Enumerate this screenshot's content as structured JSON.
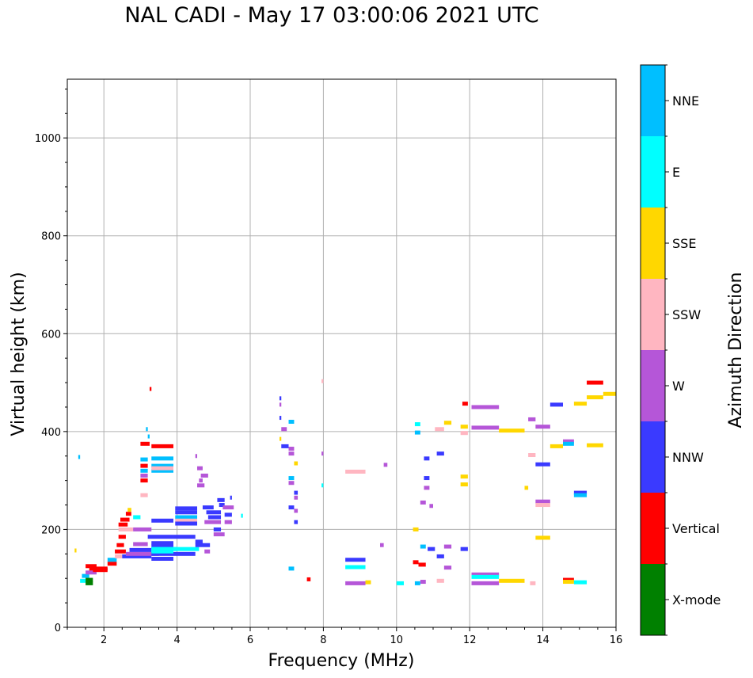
{
  "chart_data": {
    "type": "scatter",
    "title": "NAL CADI - May 17 03:00:06 2021 UTC",
    "xlabel": "Frequency (MHz)",
    "ylabel": "Virtual height (km)",
    "xlim": [
      1,
      16
    ],
    "ylim": [
      0,
      1120
    ],
    "xticks": [
      2,
      4,
      6,
      8,
      10,
      12,
      14,
      16
    ],
    "yticks": [
      0,
      200,
      400,
      600,
      800,
      1000
    ],
    "grid": true,
    "colorbar": {
      "label": "Azimuth Direction",
      "categories": [
        {
          "name": "X-mode",
          "color": "#008000"
        },
        {
          "name": "Vertical",
          "color": "#ff0000"
        },
        {
          "name": "NNW",
          "color": "#3a3aff"
        },
        {
          "name": "W",
          "color": "#b556d8"
        },
        {
          "name": "SSW",
          "color": "#ffb6c1"
        },
        {
          "name": "SSE",
          "color": "#ffd700"
        },
        {
          "name": "E",
          "color": "#00ffff"
        },
        {
          "name": "NNE",
          "color": "#00bfff"
        }
      ]
    },
    "segments": [
      {
        "f": 1.3,
        "f2": 1.35,
        "h": 348,
        "c": "NNE"
      },
      {
        "f": 1.2,
        "f2": 1.25,
        "h": 157,
        "c": "SSE"
      },
      {
        "f": 1.35,
        "f2": 1.5,
        "h": 95,
        "c": "E"
      },
      {
        "f": 1.4,
        "f2": 1.6,
        "h": 105,
        "c": "NNE"
      },
      {
        "f": 1.5,
        "f2": 1.7,
        "h": 97,
        "c": "X-mode"
      },
      {
        "f": 1.5,
        "f2": 1.7,
        "h": 90,
        "c": "X-mode"
      },
      {
        "f": 1.5,
        "f2": 1.8,
        "h": 112,
        "c": "W"
      },
      {
        "f": 1.5,
        "f2": 1.8,
        "h": 125,
        "c": "Vertical"
      },
      {
        "f": 1.6,
        "f2": 2.1,
        "h": 120,
        "c": "Vertical"
      },
      {
        "f": 1.7,
        "f2": 2.1,
        "h": 117,
        "c": "Vertical"
      },
      {
        "f": 2.1,
        "f2": 2.35,
        "h": 130,
        "c": "Vertical"
      },
      {
        "f": 2.1,
        "f2": 2.35,
        "h": 138,
        "c": "NNE"
      },
      {
        "f": 2.3,
        "f2": 2.5,
        "h": 145,
        "c": "SSW"
      },
      {
        "f": 2.3,
        "f2": 2.6,
        "h": 155,
        "c": "Vertical"
      },
      {
        "f": 2.35,
        "f2": 2.55,
        "h": 168,
        "c": "Vertical"
      },
      {
        "f": 2.4,
        "f2": 2.6,
        "h": 185,
        "c": "Vertical"
      },
      {
        "f": 2.4,
        "f2": 2.8,
        "h": 200,
        "c": "SSW"
      },
      {
        "f": 2.4,
        "f2": 2.65,
        "h": 210,
        "c": "Vertical"
      },
      {
        "f": 2.45,
        "f2": 2.7,
        "h": 220,
        "c": "Vertical"
      },
      {
        "f": 2.6,
        "f2": 2.75,
        "h": 232,
        "c": "Vertical"
      },
      {
        "f": 2.65,
        "f2": 2.75,
        "h": 240,
        "c": "SSE"
      },
      {
        "f": 2.5,
        "f2": 3.3,
        "h": 145,
        "c": "NNW"
      },
      {
        "f": 2.6,
        "f2": 3.5,
        "h": 150,
        "c": "W"
      },
      {
        "f": 2.7,
        "f2": 3.3,
        "h": 158,
        "c": "NNW"
      },
      {
        "f": 2.8,
        "f2": 3.2,
        "h": 170,
        "c": "W"
      },
      {
        "f": 2.8,
        "f2": 3.3,
        "h": 200,
        "c": "W"
      },
      {
        "f": 2.8,
        "f2": 3.0,
        "h": 225,
        "c": "E"
      },
      {
        "f": 3.0,
        "f2": 3.2,
        "h": 270,
        "c": "SSW"
      },
      {
        "f": 3.0,
        "f2": 3.2,
        "h": 300,
        "c": "Vertical"
      },
      {
        "f": 3.0,
        "f2": 3.2,
        "h": 310,
        "c": "W"
      },
      {
        "f": 3.0,
        "f2": 3.2,
        "h": 320,
        "c": "NNE"
      },
      {
        "f": 3.0,
        "f2": 3.2,
        "h": 330,
        "c": "Vertical"
      },
      {
        "f": 3.0,
        "f2": 3.2,
        "h": 343,
        "c": "NNE"
      },
      {
        "f": 3.0,
        "f2": 3.25,
        "h": 375,
        "c": "Vertical"
      },
      {
        "f": 3.2,
        "f2": 3.25,
        "h": 390,
        "c": "NNE"
      },
      {
        "f": 3.15,
        "f2": 3.2,
        "h": 405,
        "c": "NNE"
      },
      {
        "f": 3.25,
        "f2": 3.3,
        "h": 487,
        "c": "Vertical"
      },
      {
        "f": 3.3,
        "f2": 3.9,
        "h": 370,
        "c": "Vertical"
      },
      {
        "f": 3.3,
        "f2": 3.9,
        "h": 345,
        "c": "NNE"
      },
      {
        "f": 3.3,
        "f2": 3.9,
        "h": 330,
        "c": "NNE"
      },
      {
        "f": 3.3,
        "f2": 3.9,
        "h": 320,
        "c": "NNE"
      },
      {
        "f": 3.3,
        "f2": 3.9,
        "h": 325,
        "c": "SSW"
      },
      {
        "f": 3.3,
        "f2": 3.9,
        "h": 218,
        "c": "NNW"
      },
      {
        "f": 3.2,
        "f2": 3.9,
        "h": 185,
        "c": "NNW"
      },
      {
        "f": 3.3,
        "f2": 3.9,
        "h": 165,
        "c": "NNW"
      },
      {
        "f": 3.3,
        "f2": 3.9,
        "h": 150,
        "c": "NNW"
      },
      {
        "f": 3.3,
        "f2": 3.9,
        "h": 140,
        "c": "NNW"
      },
      {
        "f": 3.3,
        "f2": 3.9,
        "h": 155,
        "c": "E"
      },
      {
        "f": 3.3,
        "f2": 3.9,
        "h": 172,
        "c": "NNW"
      },
      {
        "f": 3.3,
        "f2": 4.0,
        "h": 160,
        "c": "NNE"
      },
      {
        "f": 3.3,
        "f2": 4.6,
        "h": 160,
        "c": "E"
      },
      {
        "f": 3.9,
        "f2": 4.5,
        "h": 150,
        "c": "NNW"
      },
      {
        "f": 3.95,
        "f2": 4.55,
        "h": 243,
        "c": "NNW"
      },
      {
        "f": 3.95,
        "f2": 4.55,
        "h": 235,
        "c": "NNW"
      },
      {
        "f": 3.95,
        "f2": 4.55,
        "h": 225,
        "c": "NNE"
      },
      {
        "f": 3.95,
        "f2": 4.55,
        "h": 218,
        "c": "SSW"
      },
      {
        "f": 3.95,
        "f2": 4.55,
        "h": 212,
        "c": "NNW"
      },
      {
        "f": 3.9,
        "f2": 4.5,
        "h": 185,
        "c": "NNW"
      },
      {
        "f": 4.5,
        "f2": 4.55,
        "h": 350,
        "c": "W"
      },
      {
        "f": 4.55,
        "f2": 4.7,
        "h": 325,
        "c": "W"
      },
      {
        "f": 4.6,
        "f2": 4.7,
        "h": 300,
        "c": "W"
      },
      {
        "f": 4.65,
        "f2": 4.85,
        "h": 310,
        "c": "W"
      },
      {
        "f": 4.55,
        "f2": 4.75,
        "h": 290,
        "c": "W"
      },
      {
        "f": 4.5,
        "f2": 4.7,
        "h": 175,
        "c": "NNW"
      },
      {
        "f": 4.5,
        "f2": 4.9,
        "h": 168,
        "c": "NNW"
      },
      {
        "f": 4.75,
        "f2": 4.9,
        "h": 155,
        "c": "W"
      },
      {
        "f": 4.7,
        "f2": 5.0,
        "h": 245,
        "c": "NNW"
      },
      {
        "f": 4.75,
        "f2": 5.2,
        "h": 215,
        "c": "W"
      },
      {
        "f": 4.8,
        "f2": 5.2,
        "h": 235,
        "c": "NNW"
      },
      {
        "f": 4.85,
        "f2": 5.2,
        "h": 225,
        "c": "NNW"
      },
      {
        "f": 5.0,
        "f2": 5.2,
        "h": 200,
        "c": "NNW"
      },
      {
        "f": 5.0,
        "f2": 5.3,
        "h": 190,
        "c": "W"
      },
      {
        "f": 5.1,
        "f2": 5.3,
        "h": 260,
        "c": "NNW"
      },
      {
        "f": 5.15,
        "f2": 5.3,
        "h": 250,
        "c": "NNW"
      },
      {
        "f": 5.25,
        "f2": 5.55,
        "h": 245,
        "c": "W"
      },
      {
        "f": 5.3,
        "f2": 5.5,
        "h": 230,
        "c": "NNW"
      },
      {
        "f": 5.3,
        "f2": 5.5,
        "h": 215,
        "c": "W"
      },
      {
        "f": 5.45,
        "f2": 5.5,
        "h": 265,
        "c": "NNW"
      },
      {
        "f": 5.75,
        "f2": 5.8,
        "h": 228,
        "c": "E"
      },
      {
        "f": 6.8,
        "f2": 6.85,
        "h": 468,
        "c": "NNW"
      },
      {
        "f": 6.8,
        "f2": 6.85,
        "h": 455,
        "c": "W"
      },
      {
        "f": 6.8,
        "f2": 6.85,
        "h": 428,
        "c": "NNW"
      },
      {
        "f": 6.8,
        "f2": 6.85,
        "h": 385,
        "c": "SSE"
      },
      {
        "f": 6.85,
        "f2": 7.0,
        "h": 405,
        "c": "W"
      },
      {
        "f": 6.85,
        "f2": 7.05,
        "h": 370,
        "c": "NNW"
      },
      {
        "f": 7.05,
        "f2": 7.2,
        "h": 420,
        "c": "NNE"
      },
      {
        "f": 7.05,
        "f2": 7.2,
        "h": 365,
        "c": "W"
      },
      {
        "f": 7.05,
        "f2": 7.2,
        "h": 355,
        "c": "W"
      },
      {
        "f": 7.05,
        "f2": 7.2,
        "h": 305,
        "c": "NNE"
      },
      {
        "f": 7.05,
        "f2": 7.2,
        "h": 295,
        "c": "W"
      },
      {
        "f": 7.2,
        "f2": 7.3,
        "h": 275,
        "c": "NNW"
      },
      {
        "f": 7.2,
        "f2": 7.3,
        "h": 265,
        "c": "W"
      },
      {
        "f": 7.05,
        "f2": 7.2,
        "h": 245,
        "c": "NNW"
      },
      {
        "f": 7.2,
        "f2": 7.3,
        "h": 238,
        "c": "W"
      },
      {
        "f": 7.2,
        "f2": 7.3,
        "h": 215,
        "c": "NNW"
      },
      {
        "f": 7.2,
        "f2": 7.3,
        "h": 335,
        "c": "SSE"
      },
      {
        "f": 7.05,
        "f2": 7.2,
        "h": 120,
        "c": "NNE"
      },
      {
        "f": 7.55,
        "f2": 7.65,
        "h": 98,
        "c": "Vertical"
      },
      {
        "f": 7.95,
        "f2": 8.0,
        "h": 503,
        "c": "SSW"
      },
      {
        "f": 7.95,
        "f2": 8.0,
        "h": 355,
        "c": "W"
      },
      {
        "f": 7.95,
        "f2": 8.0,
        "h": 290,
        "c": "E"
      },
      {
        "f": 8.6,
        "f2": 9.15,
        "h": 318,
        "c": "SSW"
      },
      {
        "f": 8.6,
        "f2": 9.15,
        "h": 138,
        "c": "NNW"
      },
      {
        "f": 8.6,
        "f2": 9.15,
        "h": 123,
        "c": "E"
      },
      {
        "f": 8.6,
        "f2": 9.15,
        "h": 90,
        "c": "W"
      },
      {
        "f": 9.15,
        "f2": 9.3,
        "h": 92,
        "c": "SSE"
      },
      {
        "f": 9.55,
        "f2": 9.65,
        "h": 168,
        "c": "W"
      },
      {
        "f": 9.65,
        "f2": 9.75,
        "h": 332,
        "c": "W"
      },
      {
        "f": 10.0,
        "f2": 10.2,
        "h": 90,
        "c": "E"
      },
      {
        "f": 10.5,
        "f2": 10.65,
        "h": 415,
        "c": "E"
      },
      {
        "f": 10.5,
        "f2": 10.65,
        "h": 398,
        "c": "NNE"
      },
      {
        "f": 10.45,
        "f2": 10.6,
        "h": 200,
        "c": "SSE"
      },
      {
        "f": 10.45,
        "f2": 10.6,
        "h": 133,
        "c": "Vertical"
      },
      {
        "f": 10.5,
        "f2": 10.65,
        "h": 90,
        "c": "NNE"
      },
      {
        "f": 10.65,
        "f2": 10.8,
        "h": 255,
        "c": "W"
      },
      {
        "f": 10.65,
        "f2": 10.8,
        "h": 165,
        "c": "NNE"
      },
      {
        "f": 10.6,
        "f2": 10.8,
        "h": 128,
        "c": "Vertical"
      },
      {
        "f": 10.65,
        "f2": 10.8,
        "h": 93,
        "c": "W"
      },
      {
        "f": 10.75,
        "f2": 10.9,
        "h": 345,
        "c": "NNW"
      },
      {
        "f": 10.75,
        "f2": 10.9,
        "h": 305,
        "c": "NNW"
      },
      {
        "f": 10.75,
        "f2": 10.9,
        "h": 285,
        "c": "W"
      },
      {
        "f": 10.85,
        "f2": 11.05,
        "h": 160,
        "c": "NNW"
      },
      {
        "f": 10.9,
        "f2": 11.0,
        "h": 248,
        "c": "W"
      },
      {
        "f": 11.05,
        "f2": 11.3,
        "h": 405,
        "c": "SSW"
      },
      {
        "f": 11.1,
        "f2": 11.3,
        "h": 355,
        "c": "NNW"
      },
      {
        "f": 11.1,
        "f2": 11.3,
        "h": 145,
        "c": "NNW"
      },
      {
        "f": 11.1,
        "f2": 11.3,
        "h": 95,
        "c": "SSW"
      },
      {
        "f": 11.3,
        "f2": 11.5,
        "h": 418,
        "c": "SSE"
      },
      {
        "f": 11.3,
        "f2": 11.5,
        "h": 165,
        "c": "W"
      },
      {
        "f": 11.3,
        "f2": 11.5,
        "h": 122,
        "c": "W"
      },
      {
        "f": 11.8,
        "f2": 11.95,
        "h": 457,
        "c": "Vertical"
      },
      {
        "f": 11.75,
        "f2": 11.95,
        "h": 410,
        "c": "SSE"
      },
      {
        "f": 11.75,
        "f2": 11.95,
        "h": 397,
        "c": "SSW"
      },
      {
        "f": 11.75,
        "f2": 11.95,
        "h": 308,
        "c": "SSE"
      },
      {
        "f": 11.75,
        "f2": 11.95,
        "h": 292,
        "c": "SSE"
      },
      {
        "f": 11.75,
        "f2": 11.95,
        "h": 160,
        "c": "NNW"
      },
      {
        "f": 12.05,
        "f2": 12.8,
        "h": 450,
        "c": "W"
      },
      {
        "f": 12.05,
        "f2": 12.8,
        "h": 408,
        "c": "W"
      },
      {
        "f": 12.05,
        "f2": 12.8,
        "h": 108,
        "c": "W"
      },
      {
        "f": 12.05,
        "f2": 12.8,
        "h": 103,
        "c": "E"
      },
      {
        "f": 12.05,
        "f2": 12.8,
        "h": 90,
        "c": "W"
      },
      {
        "f": 12.8,
        "f2": 13.5,
        "h": 402,
        "c": "SSE"
      },
      {
        "f": 12.8,
        "f2": 13.5,
        "h": 95,
        "c": "SSE"
      },
      {
        "f": 13.5,
        "f2": 13.6,
        "h": 285,
        "c": "SSE"
      },
      {
        "f": 13.6,
        "f2": 13.8,
        "h": 425,
        "c": "W"
      },
      {
        "f": 13.6,
        "f2": 13.8,
        "h": 352,
        "c": "SSW"
      },
      {
        "f": 13.65,
        "f2": 13.8,
        "h": 90,
        "c": "SSW"
      },
      {
        "f": 13.8,
        "f2": 14.2,
        "h": 410,
        "c": "W"
      },
      {
        "f": 13.8,
        "f2": 14.2,
        "h": 333,
        "c": "NNW"
      },
      {
        "f": 13.8,
        "f2": 14.2,
        "h": 257,
        "c": "W"
      },
      {
        "f": 13.8,
        "f2": 14.2,
        "h": 250,
        "c": "SSW"
      },
      {
        "f": 13.8,
        "f2": 14.2,
        "h": 183,
        "c": "SSE"
      },
      {
        "f": 14.2,
        "f2": 14.55,
        "h": 455,
        "c": "NNW"
      },
      {
        "f": 14.2,
        "f2": 14.55,
        "h": 370,
        "c": "SSE"
      },
      {
        "f": 14.55,
        "f2": 14.85,
        "h": 380,
        "c": "W"
      },
      {
        "f": 14.55,
        "f2": 14.85,
        "h": 375,
        "c": "NNE"
      },
      {
        "f": 14.55,
        "f2": 14.85,
        "h": 97,
        "c": "Vertical"
      },
      {
        "f": 14.55,
        "f2": 14.85,
        "h": 93,
        "c": "SSE"
      },
      {
        "f": 14.85,
        "f2": 15.2,
        "h": 457,
        "c": "SSE"
      },
      {
        "f": 14.85,
        "f2": 15.2,
        "h": 275,
        "c": "NNW"
      },
      {
        "f": 14.85,
        "f2": 15.2,
        "h": 270,
        "c": "NNE"
      },
      {
        "f": 14.85,
        "f2": 15.2,
        "h": 92,
        "c": "E"
      },
      {
        "f": 15.2,
        "f2": 15.65,
        "h": 500,
        "c": "Vertical"
      },
      {
        "f": 15.2,
        "f2": 15.65,
        "h": 470,
        "c": "SSE"
      },
      {
        "f": 15.2,
        "f2": 15.65,
        "h": 372,
        "c": "SSE"
      },
      {
        "f": 15.65,
        "f2": 16.0,
        "h": 477,
        "c": "SSE"
      }
    ]
  }
}
